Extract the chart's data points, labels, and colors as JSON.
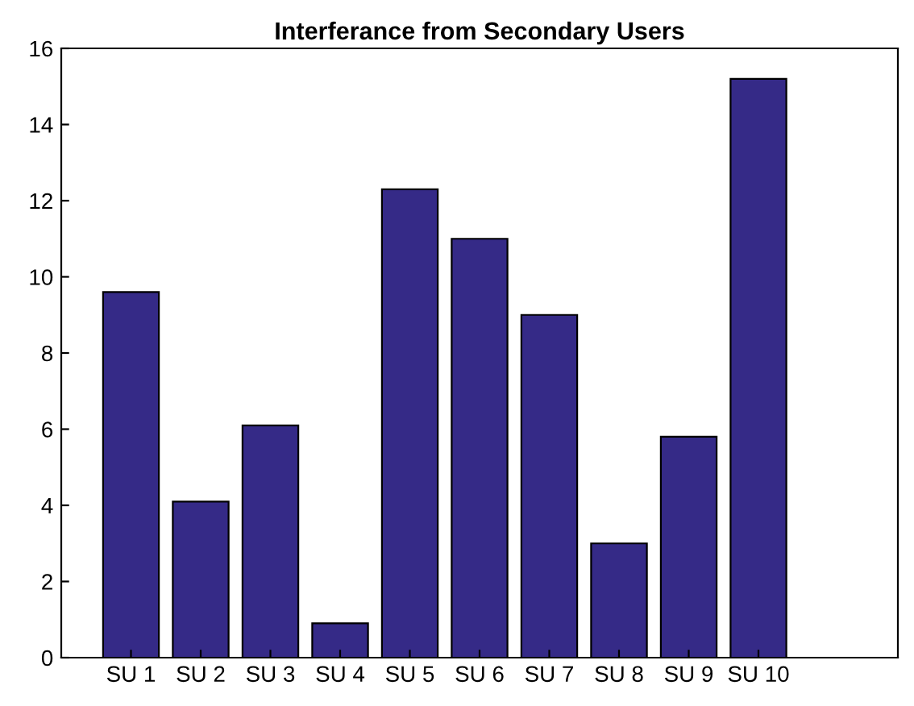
{
  "chart_data": {
    "type": "bar",
    "title": "Interferance from Secondary Users",
    "categories": [
      "SU 1",
      "SU 2",
      "SU 3",
      "SU 4",
      "SU 5",
      "SU 6",
      "SU 7",
      "SU 8",
      "SU 9",
      "SU 10"
    ],
    "values": [
      9.6,
      4.1,
      6.1,
      0.9,
      12.3,
      11.0,
      9.0,
      3.0,
      5.8,
      15.2
    ],
    "color": "#352a87",
    "ylim": [
      0,
      16
    ],
    "yticks": [
      0,
      2,
      4,
      6,
      8,
      10,
      12,
      14,
      16
    ],
    "grid": false
  }
}
